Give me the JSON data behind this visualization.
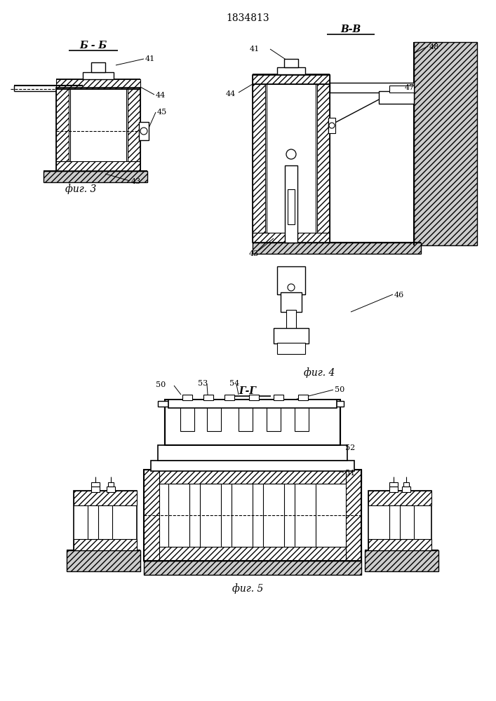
{
  "title": "1834813",
  "bg_color": "#ffffff",
  "line_color": "#000000",
  "fig3_label": "Б - Б",
  "fig4_label": "В-В",
  "fig5_label": "Г-Г",
  "caption3": "фиг. 3",
  "caption4": "фиг. 4",
  "caption5": "фиг. 5"
}
